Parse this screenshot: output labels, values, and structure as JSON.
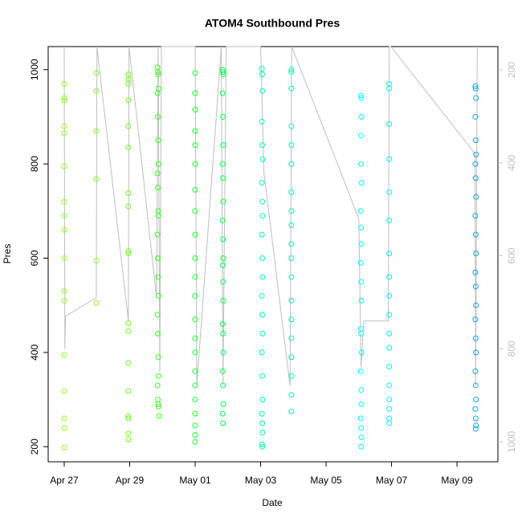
{
  "chart_data": {
    "type": "scatter",
    "title": "ATOM4 Southbound Pres",
    "x_label": "Date",
    "y_label": "Pres",
    "xlim": [
      116.51,
      130.25
    ],
    "ylim": [
      168,
      1049
    ],
    "y2lim": [
      1043,
      150
    ],
    "xticks": [
      {
        "value": 117,
        "label": "Apr 27"
      },
      {
        "value": 119,
        "label": "Apr 29"
      },
      {
        "value": 121,
        "label": "May 01"
      },
      {
        "value": 123,
        "label": "May 03"
      },
      {
        "value": 125,
        "label": "May 05"
      },
      {
        "value": 127,
        "label": "May 07"
      },
      {
        "value": 129,
        "label": "May 09"
      }
    ],
    "yticks": [
      200,
      400,
      600,
      800,
      1000
    ],
    "y2ticks": [
      200,
      400,
      600,
      800,
      1000
    ],
    "series": [
      {
        "type": "line",
        "axis": "y2",
        "color": "#bebebe",
        "x": [
          117.0,
          117.02,
          117.04,
          117.98,
          118.0,
          118.96,
          118.98,
          119.82,
          119.87,
          119.92,
          119.97,
          121.0,
          121.05,
          121.8,
          121.85,
          121.95,
          123.0,
          123.1,
          123.9,
          123.95,
          126.0,
          126.07,
          126.15,
          126.9,
          126.93,
          126.98,
          129.55,
          129.57,
          129.62
        ],
        "values": [
          150,
          800,
          730,
          690,
          150,
          740,
          150,
          690,
          150,
          850,
          150,
          150,
          880,
          150,
          880,
          150,
          150,
          420,
          880,
          150,
          520,
          840,
          740,
          740,
          150,
          150,
          380,
          880,
          150
        ]
      },
      {
        "color": "#8cff1a",
        "x": [
          117.0,
          117.0,
          117.0,
          117.0,
          117.0,
          117.0,
          117.0,
          117.0,
          117.0,
          117.0,
          117.0,
          117.0,
          117.0,
          117.0,
          117.0,
          117.0,
          117.0
        ],
        "values": [
          970,
          940,
          935,
          880,
          865,
          795,
          720,
          690,
          660,
          600,
          530,
          510,
          395,
          318,
          260,
          240,
          198
        ]
      },
      {
        "color": "#80ff1a",
        "x": [
          117.98,
          117.98,
          117.98,
          117.98,
          117.98,
          117.98
        ],
        "values": [
          993,
          955,
          870,
          768,
          595,
          505
        ]
      },
      {
        "color": "#66ff1a",
        "x": [
          118.96,
          118.96,
          118.96,
          118.96,
          118.96,
          118.96,
          118.96,
          118.96,
          118.96,
          118.96,
          118.96,
          118.96,
          118.96,
          118.96,
          118.96,
          118.96,
          118.96,
          118.96
        ],
        "values": [
          990,
          980,
          970,
          935,
          880,
          835,
          738,
          710,
          615,
          610,
          462,
          445,
          378,
          318,
          265,
          260,
          228,
          215
        ]
      },
      {
        "color": "#33ff1a",
        "x": [
          119.85,
          119.86,
          119.87,
          119.88,
          119.85,
          119.86,
          119.87,
          119.88,
          119.85,
          119.86,
          119.87,
          119.88,
          119.85,
          119.86,
          119.87,
          119.88,
          119.85,
          119.86,
          119.87,
          119.88,
          119.85,
          119.86,
          119.87,
          119.88,
          119.9
        ],
        "values": [
          1005,
          995,
          990,
          960,
          950,
          900,
          850,
          800,
          780,
          750,
          700,
          690,
          650,
          600,
          560,
          520,
          480,
          440,
          390,
          350,
          330,
          300,
          290,
          285,
          265
        ]
      },
      {
        "color": "#1aff33",
        "x": [
          121.0,
          121.0,
          121.0,
          121.0,
          121.0,
          121.0,
          121.0,
          121.0,
          121.0,
          121.0,
          121.0,
          121.0,
          121.0,
          121.0,
          121.0,
          121.0,
          121.0,
          121.0,
          121.0,
          121.0,
          121.0,
          121.0
        ],
        "values": [
          993,
          950,
          915,
          870,
          840,
          800,
          745,
          700,
          650,
          600,
          560,
          520,
          470,
          430,
          400,
          360,
          330,
          300,
          270,
          245,
          225,
          210
        ]
      },
      {
        "color": "#00ff4d",
        "x": [
          121.84,
          121.85,
          121.86,
          121.84,
          121.85,
          121.86,
          121.84,
          121.85,
          121.86,
          121.84,
          121.85,
          121.86,
          121.84,
          121.85,
          121.86,
          121.84,
          121.85,
          121.86,
          121.84,
          121.85,
          121.86,
          121.84,
          121.85
        ],
        "values": [
          1000,
          995,
          990,
          950,
          900,
          840,
          800,
          770,
          720,
          680,
          640,
          600,
          585,
          550,
          510,
          460,
          440,
          400,
          360,
          330,
          290,
          270,
          250
        ]
      },
      {
        "color": "#00ff99",
        "x": [
          123.04,
          123.05,
          123.06,
          123.04,
          123.05,
          123.06,
          123.04,
          123.05,
          123.06,
          123.04,
          123.05,
          123.06,
          123.04,
          123.05,
          123.06,
          123.04,
          123.05,
          123.06,
          123.04,
          123.05,
          123.06,
          123.04,
          123.05
        ],
        "values": [
          1002,
          990,
          955,
          890,
          840,
          810,
          760,
          720,
          690,
          650,
          600,
          560,
          520,
          480,
          440,
          400,
          350,
          300,
          270,
          250,
          230,
          205,
          200
        ]
      },
      {
        "color": "#00ffb3",
        "x": [
          123.94,
          123.94,
          123.94,
          123.94,
          123.94,
          123.94,
          123.94,
          123.94,
          123.94,
          123.94,
          123.94,
          123.94,
          123.94,
          123.94,
          123.94,
          123.94,
          123.94,
          123.94,
          123.94
        ],
        "values": [
          1000,
          995,
          960,
          880,
          840,
          800,
          740,
          700,
          670,
          630,
          600,
          560,
          510,
          470,
          430,
          390,
          350,
          310,
          275
        ]
      },
      {
        "color": "#00ffff",
        "x": [
          126.06,
          126.07,
          126.08,
          126.06,
          126.07,
          126.08,
          126.06,
          126.07,
          126.08,
          126.06,
          126.07,
          126.08,
          126.06,
          126.07,
          126.08,
          126.06,
          126.07,
          126.08,
          126.06,
          126.07,
          126.08,
          126.07
        ],
        "values": [
          945,
          940,
          900,
          860,
          800,
          760,
          700,
          665,
          630,
          590,
          550,
          510,
          450,
          440,
          400,
          360,
          320,
          290,
          260,
          240,
          220,
          200
        ]
      },
      {
        "color": "#00eeff",
        "x": [
          126.93,
          126.93,
          126.93,
          126.93,
          126.93,
          126.93,
          126.93,
          126.93,
          126.93,
          126.93,
          126.93,
          126.93,
          126.93,
          126.93,
          126.93,
          126.93,
          126.93,
          126.93
        ],
        "values": [
          970,
          960,
          885,
          810,
          740,
          680,
          610,
          560,
          520,
          480,
          440,
          410,
          370,
          330,
          300,
          280,
          260,
          250
        ]
      },
      {
        "color": "#1a9fe0",
        "x": [
          129.56,
          129.57,
          129.58,
          129.56,
          129.57,
          129.58,
          129.56,
          129.57,
          129.58,
          129.56,
          129.57,
          129.58,
          129.56,
          129.57,
          129.58,
          129.56,
          129.57,
          129.58,
          129.56,
          129.57,
          129.58,
          129.56,
          129.57,
          129.58,
          129.57
        ],
        "values": [
          965,
          960,
          940,
          900,
          850,
          820,
          800,
          770,
          730,
          690,
          650,
          610,
          570,
          540,
          500,
          470,
          430,
          400,
          360,
          330,
          300,
          280,
          260,
          245,
          238
        ]
      }
    ]
  }
}
